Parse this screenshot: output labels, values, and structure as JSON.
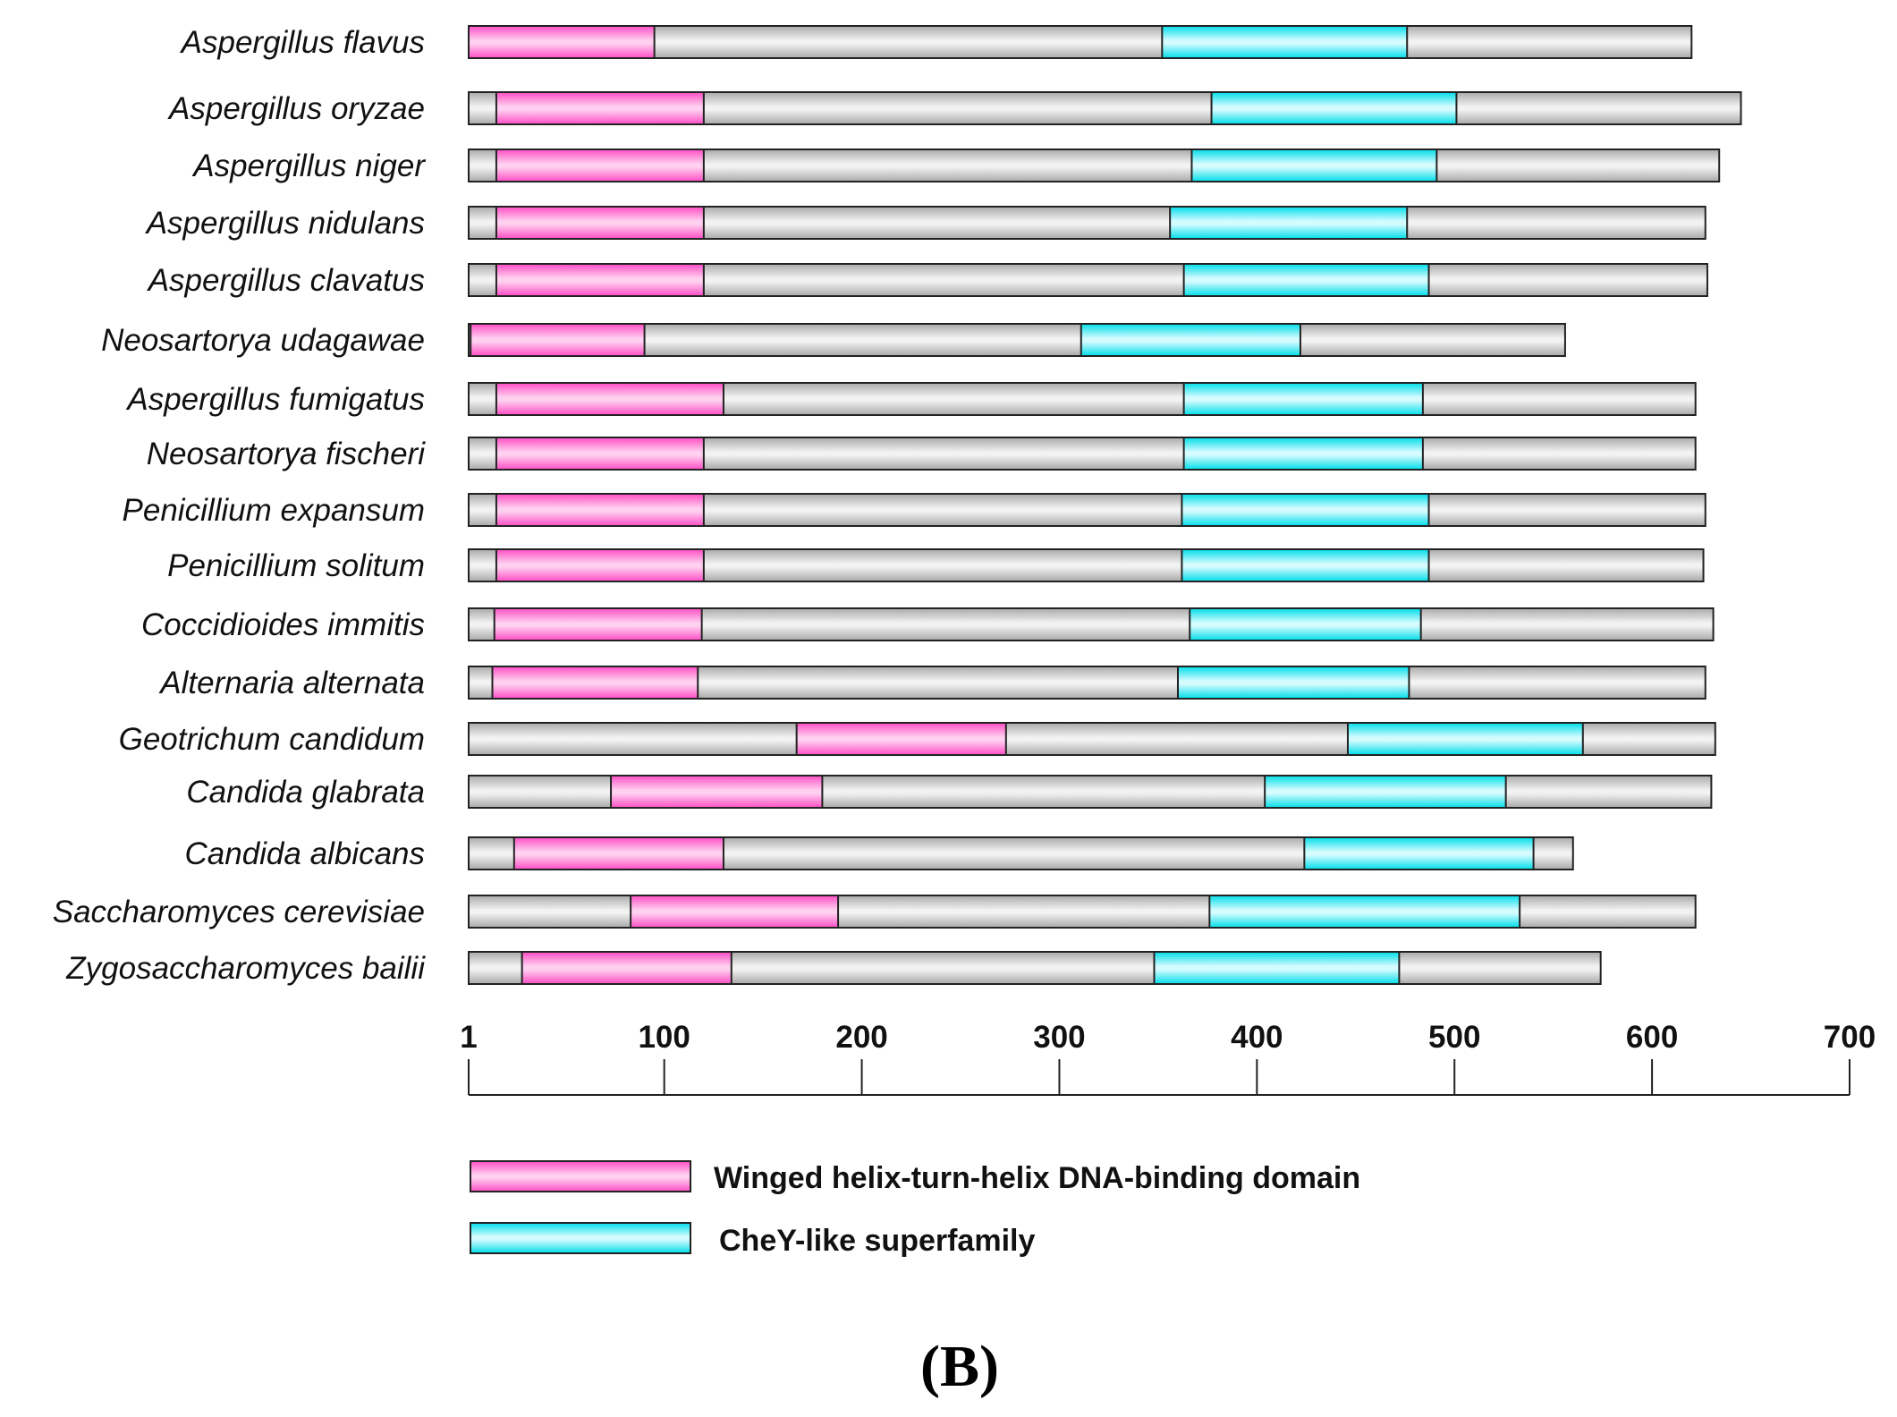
{
  "chart_data": {
    "type": "domain-architecture",
    "axis": {
      "min": 1,
      "max": 700,
      "ticks": [
        {
          "value": 1,
          "label": "1"
        },
        {
          "value": 100,
          "label": "100"
        },
        {
          "value": 200,
          "label": "200"
        },
        {
          "value": 300,
          "label": "300"
        },
        {
          "value": 400,
          "label": "400"
        },
        {
          "value": 500,
          "label": "500"
        },
        {
          "value": 600,
          "label": "600"
        },
        {
          "value": 700,
          "label": "700"
        }
      ]
    },
    "domain_types": {
      "whth": {
        "label": "Winged helix-turn-helix DNA-binding domain",
        "color": "#ff66cc"
      },
      "chey": {
        "label": "CheY-like superfamily",
        "color": "#00e5f0"
      }
    },
    "proteins": [
      {
        "species": "Aspergillus flavus",
        "length": 620,
        "domains": [
          {
            "type": "whth",
            "start": 1,
            "end": 95
          },
          {
            "type": "chey",
            "start": 352,
            "end": 476
          }
        ]
      },
      {
        "species": "Aspergillus oryzae",
        "length": 645,
        "domains": [
          {
            "type": "whth",
            "start": 15,
            "end": 120
          },
          {
            "type": "chey",
            "start": 377,
            "end": 501
          }
        ]
      },
      {
        "species": "Aspergillus niger",
        "length": 634,
        "domains": [
          {
            "type": "whth",
            "start": 15,
            "end": 120
          },
          {
            "type": "chey",
            "start": 367,
            "end": 491
          }
        ]
      },
      {
        "species": "Aspergillus nidulans",
        "length": 627,
        "domains": [
          {
            "type": "whth",
            "start": 15,
            "end": 120
          },
          {
            "type": "chey",
            "start": 356,
            "end": 476
          }
        ]
      },
      {
        "species": "Aspergillus clavatus",
        "length": 628,
        "domains": [
          {
            "type": "whth",
            "start": 15,
            "end": 120
          },
          {
            "type": "chey",
            "start": 363,
            "end": 487
          }
        ]
      },
      {
        "species": "Neosartorya udagawae",
        "length": 556,
        "domains": [
          {
            "type": "whth",
            "start": 2,
            "end": 90
          },
          {
            "type": "chey",
            "start": 311,
            "end": 422
          }
        ]
      },
      {
        "species": "Aspergillus fumigatus",
        "length": 622,
        "domains": [
          {
            "type": "whth",
            "start": 15,
            "end": 130
          },
          {
            "type": "chey",
            "start": 363,
            "end": 484
          }
        ]
      },
      {
        "species": "Neosartorya fischeri",
        "length": 622,
        "domains": [
          {
            "type": "whth",
            "start": 15,
            "end": 120
          },
          {
            "type": "chey",
            "start": 363,
            "end": 484
          }
        ]
      },
      {
        "species": "Penicillium expansum",
        "length": 627,
        "domains": [
          {
            "type": "whth",
            "start": 15,
            "end": 120
          },
          {
            "type": "chey",
            "start": 362,
            "end": 487
          }
        ]
      },
      {
        "species": "Penicillium solitum",
        "length": 626,
        "domains": [
          {
            "type": "whth",
            "start": 15,
            "end": 120
          },
          {
            "type": "chey",
            "start": 362,
            "end": 487
          }
        ]
      },
      {
        "species": "Coccidioides immitis",
        "length": 631,
        "domains": [
          {
            "type": "whth",
            "start": 14,
            "end": 119
          },
          {
            "type": "chey",
            "start": 366,
            "end": 483
          }
        ]
      },
      {
        "species": "Alternaria alternata",
        "length": 627,
        "domains": [
          {
            "type": "whth",
            "start": 13,
            "end": 117
          },
          {
            "type": "chey",
            "start": 360,
            "end": 477
          }
        ]
      },
      {
        "species": "Geotrichum candidum",
        "length": 632,
        "domains": [
          {
            "type": "whth",
            "start": 167,
            "end": 273
          },
          {
            "type": "chey",
            "start": 446,
            "end": 565
          }
        ]
      },
      {
        "species": "Candida glabrata",
        "length": 630,
        "domains": [
          {
            "type": "whth",
            "start": 73,
            "end": 180
          },
          {
            "type": "chey",
            "start": 404,
            "end": 526
          }
        ]
      },
      {
        "species": "Candida albicans",
        "length": 560,
        "domains": [
          {
            "type": "whth",
            "start": 24,
            "end": 130
          },
          {
            "type": "chey",
            "start": 424,
            "end": 540
          }
        ]
      },
      {
        "species": "Saccharomyces cerevisiae",
        "length": 622,
        "domains": [
          {
            "type": "whth",
            "start": 83,
            "end": 188
          },
          {
            "type": "chey",
            "start": 376,
            "end": 533
          }
        ]
      },
      {
        "species": "Zygosaccharomyces bailii",
        "length": 574,
        "domains": [
          {
            "type": "whth",
            "start": 28,
            "end": 134
          },
          {
            "type": "chey",
            "start": 348,
            "end": 472
          }
        ]
      }
    ]
  },
  "legend": {
    "whth_label": "Winged helix-turn-helix DNA-binding domain",
    "chey_label": "CheY-like superfamily"
  },
  "panel_label": "(B)"
}
